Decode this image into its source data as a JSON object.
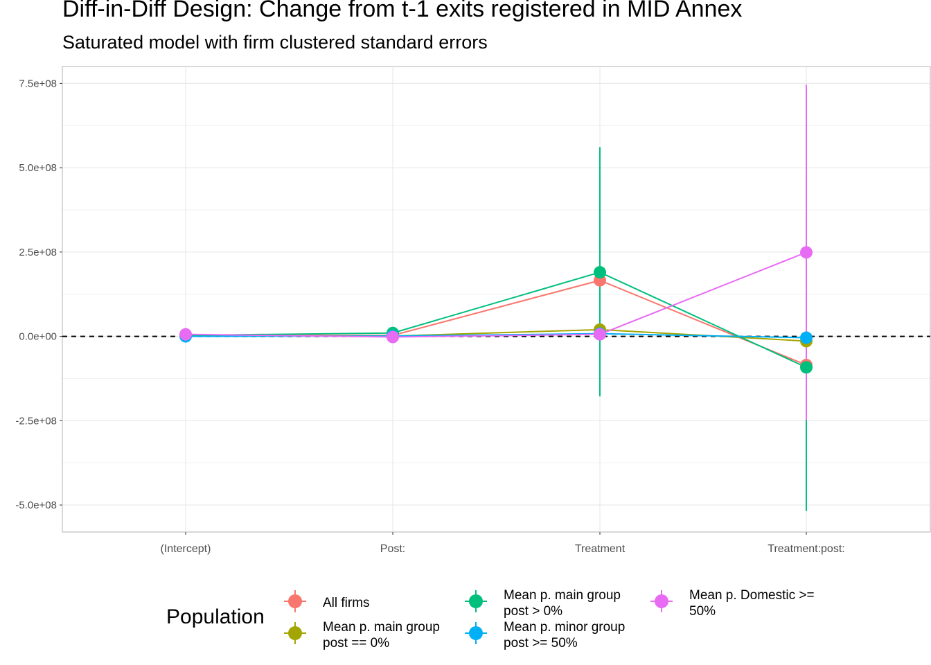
{
  "title": "Diff-in-Diff Design: Change from t-1 exits registered in MID Annex",
  "subtitle": "Saturated model with firm clustered standard errors",
  "legend": {
    "title": "Population"
  },
  "chart_data": {
    "type": "line",
    "categories": [
      "(Intercept)",
      "Post:",
      "Treatment",
      "Treatment:post:"
    ],
    "ylim": [
      -580000000,
      800000000
    ],
    "yticks": [
      -500000000,
      -250000000,
      0,
      250000000,
      500000000,
      750000000
    ],
    "ytick_labels": [
      "-5.0e+08",
      "-2.5e+08",
      "0.0e+00",
      "2.5e+08",
      "5.0e+08",
      "7.5e+08"
    ],
    "grid": true,
    "legend_position": "bottom",
    "reference_line": {
      "y": 0,
      "style": "dashed"
    },
    "series": [
      {
        "name": "All firms",
        "color": "#F8766D",
        "values": [
          3000000,
          3000000,
          166000000,
          -85000000
        ],
        "lower": [
          null,
          null,
          null,
          null
        ],
        "upper": [
          null,
          null,
          null,
          null
        ]
      },
      {
        "name": "Mean p. main group\npost == 0%",
        "color": "#A3A500",
        "values": [
          2000000,
          1000000,
          20000000,
          -14000000
        ],
        "lower": [
          null,
          null,
          null,
          null
        ],
        "upper": [
          null,
          null,
          null,
          null
        ]
      },
      {
        "name": "Mean p. main group\npost > 0%",
        "color": "#00BF7D",
        "values": [
          3000000,
          10000000,
          190000000,
          -92000000
        ],
        "lower": [
          null,
          null,
          -178000000,
          -518000000
        ],
        "upper": [
          null,
          null,
          561000000,
          334000000
        ]
      },
      {
        "name": "Mean p. minor group\npost >= 50%",
        "color": "#00B0F6",
        "values": [
          0,
          1000000,
          8000000,
          -4000000
        ],
        "lower": [
          null,
          null,
          null,
          null
        ],
        "upper": [
          null,
          null,
          null,
          null
        ]
      },
      {
        "name": "Mean p. Domestic >=\n50%",
        "color": "#E76BF3",
        "values": [
          6000000,
          -2000000,
          6000000,
          249000000
        ],
        "lower": [
          null,
          null,
          null,
          -248000000
        ],
        "upper": [
          null,
          null,
          null,
          746000000
        ]
      }
    ]
  }
}
